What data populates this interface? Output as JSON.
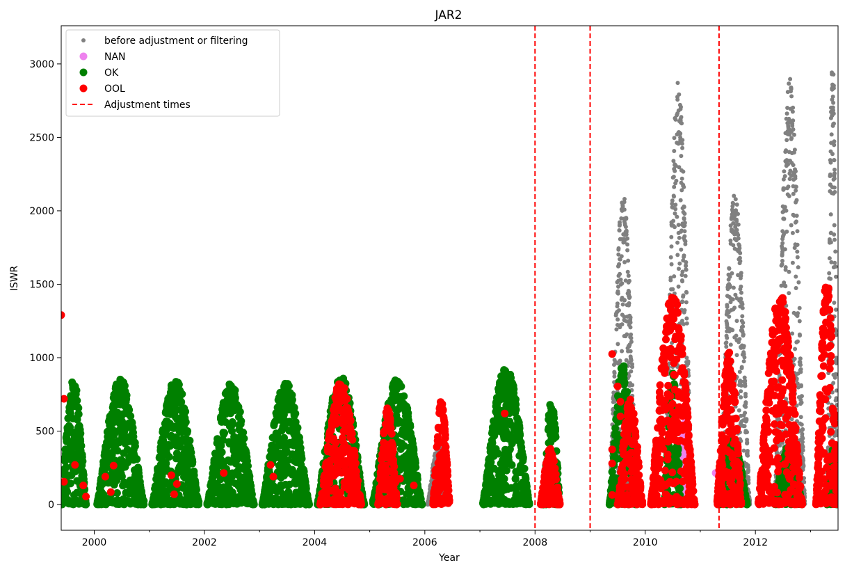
{
  "chart_data": {
    "type": "scatter",
    "title": "JAR2",
    "xlabel": "Year",
    "ylabel": "ISWR",
    "xlim": [
      1999.4,
      2013.5
    ],
    "ylim": [
      -175,
      3260
    ],
    "x_ticks": [
      2000,
      2002,
      2004,
      2006,
      2008,
      2010,
      2012
    ],
    "y_ticks": [
      0,
      500,
      1000,
      1500,
      2000,
      2500,
      3000
    ],
    "grid": false,
    "legend_position": "top-left",
    "colors": {
      "before": "#808080",
      "nan": "#ee82ee",
      "ok": "#008000",
      "ool": "#ff0000",
      "adjustment": "#ff0000"
    },
    "series": [
      {
        "name": "before adjustment or filtering",
        "marker": "small-dot",
        "seasons": [
          {
            "start": 2006.05,
            "end": 2006.45,
            "peak": 420
          },
          {
            "start": 2009.35,
            "end": 2009.85,
            "peak": 2120
          },
          {
            "start": 2010.35,
            "end": 2010.85,
            "peak": 2880
          },
          {
            "start": 2011.35,
            "end": 2011.9,
            "peak": 2120
          },
          {
            "start": 2012.35,
            "end": 2012.9,
            "peak": 2900
          },
          {
            "start": 2013.3,
            "end": 2013.5,
            "peak": 3110
          }
        ]
      },
      {
        "name": "NAN",
        "marker": "dot",
        "seasons": [
          {
            "start": 2010.6,
            "end": 2010.85,
            "peak": 560
          }
        ],
        "points": [
          {
            "x": 2011.28,
            "y": 215
          }
        ]
      },
      {
        "name": "OK",
        "marker": "dot",
        "seasons": [
          {
            "start": 1999.4,
            "end": 1999.85,
            "peak": 860
          },
          {
            "start": 2000.05,
            "end": 2000.9,
            "peak": 855
          },
          {
            "start": 2001.05,
            "end": 2001.9,
            "peak": 850
          },
          {
            "start": 2002.05,
            "end": 2002.9,
            "peak": 825
          },
          {
            "start": 2003.05,
            "end": 2003.9,
            "peak": 835
          },
          {
            "start": 2004.05,
            "end": 2004.9,
            "peak": 880
          },
          {
            "start": 2005.05,
            "end": 2005.95,
            "peak": 855
          },
          {
            "start": 2007.05,
            "end": 2007.9,
            "peak": 940
          },
          {
            "start": 2008.15,
            "end": 2008.45,
            "peak": 730
          },
          {
            "start": 2009.35,
            "end": 2009.85,
            "peak": 960
          },
          {
            "start": 2010.35,
            "end": 2010.65,
            "peak": 900
          },
          {
            "start": 2011.35,
            "end": 2011.85,
            "peak": 450
          },
          {
            "start": 2012.35,
            "end": 2012.85,
            "peak": 400
          },
          {
            "start": 2013.3,
            "end": 2013.5,
            "peak": 380
          }
        ]
      },
      {
        "name": "OOL",
        "marker": "dot",
        "seasons": [
          {
            "start": 2004.1,
            "end": 2004.85,
            "peak": 835
          },
          {
            "start": 2005.15,
            "end": 2005.5,
            "peak": 660
          },
          {
            "start": 2006.15,
            "end": 2006.45,
            "peak": 710
          },
          {
            "start": 2008.1,
            "end": 2008.45,
            "peak": 380
          },
          {
            "start": 2009.5,
            "end": 2009.95,
            "peak": 720
          },
          {
            "start": 2010.1,
            "end": 2010.9,
            "peak": 1450
          },
          {
            "start": 2011.3,
            "end": 2011.75,
            "peak": 1060
          },
          {
            "start": 2012.05,
            "end": 2012.85,
            "peak": 1450
          },
          {
            "start": 2013.1,
            "end": 2013.5,
            "peak": 1560
          }
        ],
        "points": [
          {
            "x": 1999.4,
            "y": 1290
          },
          {
            "x": 1999.45,
            "y": 720
          },
          {
            "x": 1999.45,
            "y": 155
          },
          {
            "x": 1999.65,
            "y": 270
          },
          {
            "x": 1999.8,
            "y": 130
          },
          {
            "x": 1999.85,
            "y": 55
          },
          {
            "x": 2000.2,
            "y": 190
          },
          {
            "x": 2000.35,
            "y": 265
          },
          {
            "x": 2000.3,
            "y": 85
          },
          {
            "x": 2001.4,
            "y": 200
          },
          {
            "x": 2001.5,
            "y": 140
          },
          {
            "x": 2001.45,
            "y": 70
          },
          {
            "x": 2002.35,
            "y": 215
          },
          {
            "x": 2003.2,
            "y": 270
          },
          {
            "x": 2003.25,
            "y": 190
          },
          {
            "x": 2005.55,
            "y": 175
          },
          {
            "x": 2005.8,
            "y": 130
          },
          {
            "x": 2007.45,
            "y": 620
          },
          {
            "x": 2009.4,
            "y": 1025
          },
          {
            "x": 2009.5,
            "y": 805
          },
          {
            "x": 2009.55,
            "y": 700
          },
          {
            "x": 2009.55,
            "y": 600
          },
          {
            "x": 2009.4,
            "y": 375
          },
          {
            "x": 2009.4,
            "y": 280
          },
          {
            "x": 2009.4,
            "y": 65
          }
        ]
      }
    ],
    "adjustment_times": [
      2008.0,
      2009.0,
      2011.34
    ],
    "legend": [
      {
        "label": "before adjustment or filtering",
        "color": "#808080",
        "kind": "small-dot"
      },
      {
        "label": "NAN",
        "color": "#ee82ee",
        "kind": "dot"
      },
      {
        "label": "OK",
        "color": "#008000",
        "kind": "dot"
      },
      {
        "label": "OOL",
        "color": "#ff0000",
        "kind": "dot"
      },
      {
        "label": "Adjustment times",
        "color": "#ff0000",
        "kind": "dashed-line"
      }
    ]
  }
}
